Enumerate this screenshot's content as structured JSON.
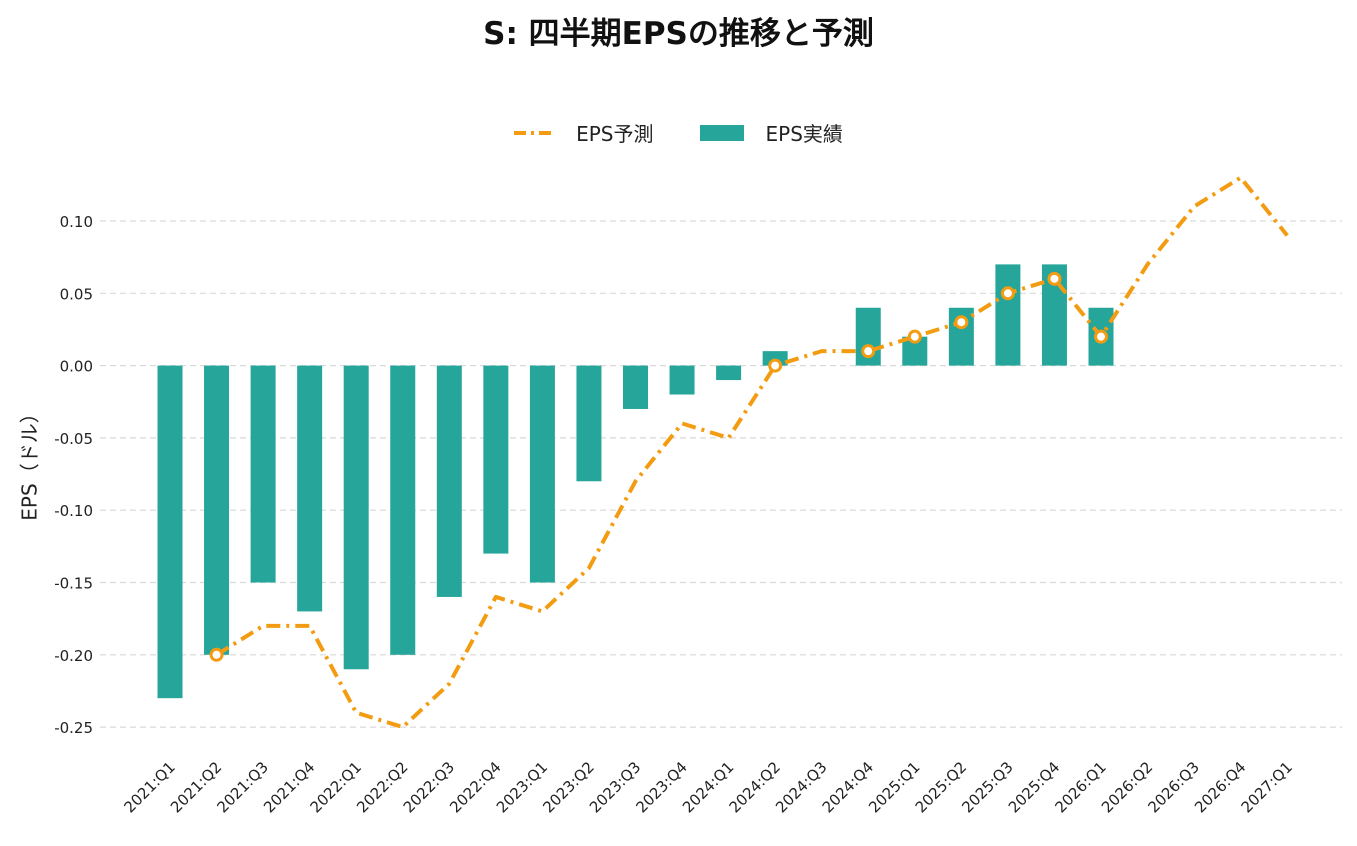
{
  "chart_data": {
    "type": "bar",
    "title": "S: 四半期EPSの推移と予測",
    "xlabel": "",
    "ylabel": "EPS（ドル）",
    "ylim": [
      -0.27,
      0.15
    ],
    "yticks": [
      0.1,
      0.05,
      0.0,
      -0.05,
      -0.1,
      -0.15,
      -0.2,
      -0.25
    ],
    "ytick_labels": [
      "0.10",
      "0.05",
      "0.00",
      "-0.05",
      "-0.10",
      "-0.15",
      "-0.20",
      "-0.25"
    ],
    "grid": true,
    "legend_position": "top-center",
    "categories": [
      "2021:Q1",
      "2021:Q2",
      "2021:Q3",
      "2021:Q4",
      "2022:Q1",
      "2022:Q2",
      "2022:Q3",
      "2022:Q4",
      "2023:Q1",
      "2023:Q2",
      "2023:Q3",
      "2023:Q4",
      "2024:Q1",
      "2024:Q2",
      "2024:Q3",
      "2024:Q4",
      "2025:Q1",
      "2025:Q2",
      "2025:Q3",
      "2025:Q4",
      "2026:Q1",
      "2026:Q2",
      "2026:Q3",
      "2026:Q4",
      "2027:Q1"
    ],
    "series": [
      {
        "name": "EPS予測",
        "type": "line",
        "color": "#f39c12",
        "values": [
          null,
          -0.2,
          -0.18,
          -0.18,
          -0.24,
          -0.25,
          -0.22,
          -0.16,
          -0.17,
          -0.14,
          -0.08,
          -0.04,
          -0.05,
          0.0,
          0.01,
          0.01,
          0.02,
          0.03,
          0.05,
          0.06,
          0.02,
          0.07,
          0.11,
          0.13,
          0.09
        ]
      },
      {
        "name": "EPS実績",
        "type": "bar",
        "color": "#26a69a",
        "values": [
          -0.23,
          -0.2,
          -0.15,
          -0.17,
          -0.21,
          -0.2,
          -0.16,
          -0.13,
          -0.15,
          -0.08,
          -0.03,
          -0.02,
          -0.01,
          0.01,
          null,
          0.04,
          0.02,
          0.04,
          0.07,
          0.07,
          0.04,
          null,
          null,
          null,
          null
        ]
      }
    ],
    "markers_on": [
      "2021:Q2",
      "2024:Q2",
      "2024:Q4",
      "2025:Q1",
      "2025:Q2",
      "2025:Q3",
      "2025:Q4",
      "2026:Q1"
    ]
  }
}
